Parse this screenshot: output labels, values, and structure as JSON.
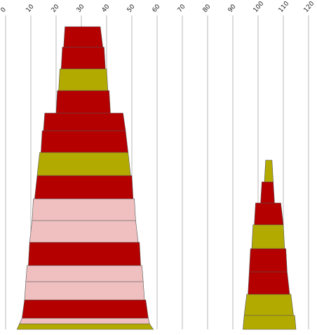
{
  "chart_data": {
    "type": "stacked_trapezoid",
    "x_axis": {
      "ticks": [
        0,
        10,
        20,
        30,
        40,
        50,
        60,
        70,
        80,
        90,
        100,
        110,
        120
      ],
      "tick_labels": [
        "0",
        "10",
        "20",
        "30",
        "40",
        "50",
        "60",
        "70",
        "80",
        "90",
        "100",
        "110",
        "120"
      ],
      "range": [
        0,
        120
      ],
      "position": "top",
      "grid": true
    },
    "colors": {
      "red": "#b50000",
      "olive": "#b3aa00",
      "pink": "#f0c0c0"
    },
    "stacks": [
      {
        "segments": [
          {
            "color": "olive",
            "bottom": [
              4.5,
              58.5
            ],
            "top": [
              5.5,
              57
            ]
          },
          {
            "color": "pink",
            "bottom": [
              5.5,
              57
            ],
            "top": [
              6.5,
              56.5
            ]
          },
          {
            "color": "red",
            "bottom": [
              6.5,
              56.5
            ],
            "top": [
              7.5,
              55.5
            ]
          },
          {
            "color": "pink",
            "bottom": [
              7.5,
              55
            ],
            "top": [
              8,
              54.5
            ]
          },
          {
            "color": "pink",
            "bottom": [
              8,
              54.5
            ],
            "top": [
              8.5,
              54
            ]
          },
          {
            "color": "red",
            "bottom": [
              9,
              53.5
            ],
            "top": [
              9.5,
              53
            ]
          },
          {
            "color": "pink",
            "bottom": [
              9.5,
              52.5
            ],
            "top": [
              10.5,
              51.5
            ]
          },
          {
            "color": "pink",
            "bottom": [
              10.5,
              51.5
            ],
            "top": [
              11,
              51
            ]
          },
          {
            "color": "red",
            "bottom": [
              11.5,
              50.5
            ],
            "top": [
              12.5,
              50
            ]
          },
          {
            "color": "olive",
            "bottom": [
              12.5,
              49.5
            ],
            "top": [
              13.5,
              48.5
            ]
          },
          {
            "color": "red",
            "bottom": [
              14,
              48.5
            ],
            "top": [
              14.5,
              47.5
            ]
          },
          {
            "color": "red",
            "bottom": [
              15,
              47.5
            ],
            "top": [
              15.5,
              46.5
            ]
          },
          {
            "color": "red",
            "bottom": [
              20,
              41.5
            ],
            "top": [
              20.5,
              41
            ]
          },
          {
            "color": "olive",
            "bottom": [
              21,
              40.5
            ],
            "top": [
              21.5,
              40
            ]
          },
          {
            "color": "red",
            "bottom": [
              22,
              39.5
            ],
            "top": [
              22.5,
              39
            ]
          },
          {
            "color": "red",
            "bottom": [
              23,
              38.5
            ],
            "top": [
              23.5,
              37.5
            ]
          }
        ]
      },
      {
        "segments": [
          {
            "color": "olive",
            "bottom": [
              94,
              115
            ],
            "top": [
              94.5,
              114.5
            ]
          },
          {
            "color": "olive",
            "bottom": [
              94.5,
              114
            ],
            "top": [
              95.5,
              113
            ]
          },
          {
            "color": "red",
            "bottom": [
              96,
              112.5
            ],
            "top": [
              96.5,
              111.5
            ]
          },
          {
            "color": "red",
            "bottom": [
              96.5,
              111.5
            ],
            "top": [
              97,
              111
            ]
          },
          {
            "color": "olive",
            "bottom": [
              97.5,
              110.5
            ],
            "top": [
              98,
              110
            ]
          },
          {
            "color": "red",
            "bottom": [
              98.5,
              110
            ],
            "top": [
              99,
              109
            ]
          },
          {
            "color": "red",
            "bottom": [
              101,
              106.5
            ],
            "top": [
              101.5,
              106
            ]
          },
          {
            "color": "olive",
            "bottom": [
              102.5,
              106
            ],
            "top": [
              103,
              105.5
            ]
          }
        ]
      }
    ]
  }
}
